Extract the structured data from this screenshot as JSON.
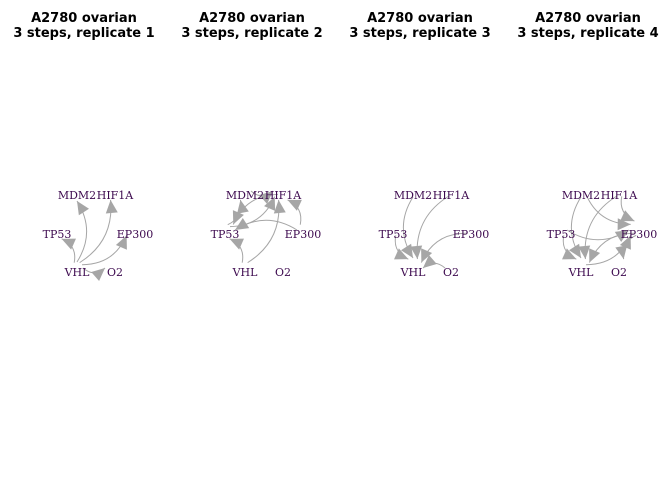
{
  "panels": [
    {
      "title": "A2780 ovarian\n3 steps, replicate 1",
      "edges": [
        [
          "VHL",
          "TP53"
        ],
        [
          "VHL",
          "MDM2"
        ],
        [
          "VHL",
          "HIF1A"
        ],
        [
          "VHL",
          "EP300"
        ],
        [
          "VHL",
          "O2"
        ]
      ]
    },
    {
      "title": "A2780 ovarian\n3 steps, replicate 2",
      "edges": [
        [
          "VHL",
          "TP53"
        ],
        [
          "MDM2",
          "HIF1A"
        ],
        [
          "TP53",
          "HIF1A"
        ],
        [
          "HIF1A",
          "TP53"
        ],
        [
          "EP300",
          "TP53"
        ],
        [
          "EP300",
          "HIF1A"
        ],
        [
          "VHL",
          "HIF1A"
        ],
        [
          "TP53",
          "MDM2"
        ]
      ]
    },
    {
      "title": "A2780 ovarian\n3 steps, replicate 3",
      "edges": [
        [
          "TP53",
          "VHL"
        ],
        [
          "MDM2",
          "VHL"
        ],
        [
          "HIF1A",
          "VHL"
        ],
        [
          "EP300",
          "VHL"
        ],
        [
          "O2",
          "VHL"
        ]
      ]
    },
    {
      "title": "A2780 ovarian\n3 steps, replicate 4",
      "edges": [
        [
          "TP53",
          "VHL"
        ],
        [
          "MDM2",
          "VHL"
        ],
        [
          "HIF1A",
          "VHL"
        ],
        [
          "EP300",
          "VHL"
        ],
        [
          "MDM2",
          "EP300"
        ],
        [
          "TP53",
          "EP300"
        ],
        [
          "HIF1A",
          "EP300"
        ],
        [
          "VHL",
          "EP300"
        ],
        [
          "EP300",
          "O2"
        ]
      ]
    }
  ],
  "node_names": [
    "MDM2",
    "HIF1A",
    "TP53",
    "EP300",
    "VHL",
    "O2"
  ],
  "colors": {
    "edge": "#a6a6a6",
    "node_label": "#3d0a4f"
  }
}
